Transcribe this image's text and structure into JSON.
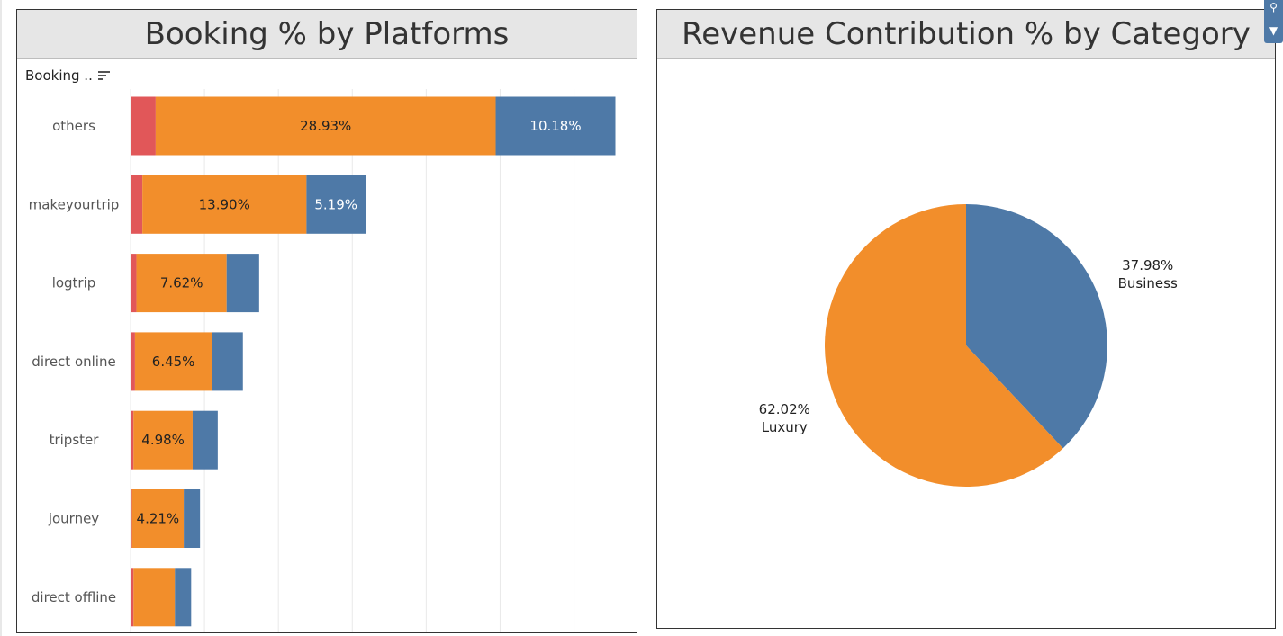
{
  "colors": {
    "red": "#e15759",
    "orange": "#f28e2b",
    "blue": "#4e79a7",
    "grid": "#e9e9e9",
    "label": "#555555"
  },
  "left_panel": {
    "title": "Booking % by Platforms",
    "sort_label": "Booking ..",
    "sort_icon": "sort-descending-icon"
  },
  "right_panel": {
    "title": "Revenue Contribution % by Category"
  },
  "scroll_widget": {
    "icons": [
      "pin-icon",
      "chevron-down-icon"
    ]
  },
  "chart_data": [
    {
      "type": "bar",
      "orientation": "horizontal",
      "stacked": true,
      "title": "Booking % by Platforms",
      "categories": [
        "others",
        "makeyourtrip",
        "logtrip",
        "direct online",
        "tripster",
        "journey",
        "direct offline"
      ],
      "series": [
        {
          "color": "#e15759",
          "values": [
            1.7,
            0.8,
            0.4,
            0.3,
            0.2,
            0.1,
            0.2
          ],
          "labels": [
            "",
            "",
            "",
            "",
            "",
            "",
            ""
          ]
        },
        {
          "color": "#f28e2b",
          "values": [
            23.0,
            11.1,
            6.1,
            5.2,
            4.0,
            3.5,
            2.8
          ],
          "labels": [
            "28.93%",
            "13.90%",
            "7.62%",
            "6.45%",
            "4.98%",
            "4.21%",
            ""
          ]
        },
        {
          "color": "#4e79a7",
          "values": [
            8.1,
            4.0,
            2.2,
            2.1,
            1.7,
            1.1,
            1.1
          ],
          "labels": [
            "10.18%",
            "5.19%",
            "",
            "",
            "",
            "",
            ""
          ]
        }
      ],
      "xlim": [
        0,
        33.5
      ],
      "grid_x": [
        0,
        5,
        10,
        15,
        20,
        25,
        30
      ]
    },
    {
      "type": "pie",
      "title": "Revenue Contribution % by Category",
      "slices": [
        {
          "label": "Business",
          "value": 37.98,
          "value_label": "37.98%",
          "color": "#4e79a7"
        },
        {
          "label": "Luxury",
          "value": 62.02,
          "value_label": "62.02%",
          "color": "#f28e2b"
        }
      ]
    }
  ]
}
